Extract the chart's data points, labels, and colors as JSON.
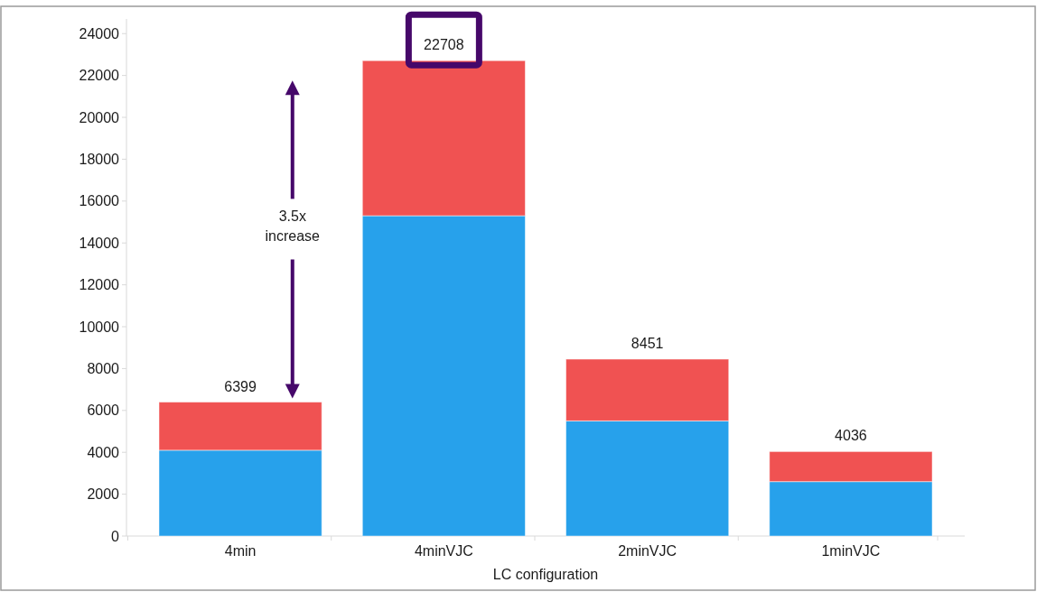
{
  "chart_data": {
    "type": "bar",
    "stacked": true,
    "xlabel": "LC configuration",
    "categories": [
      "4min",
      "4minVJC",
      "2minVJC",
      "1minVJC"
    ],
    "series": [
      {
        "color": "#27a1eb",
        "values": [
          4100,
          15300,
          5500,
          2600
        ]
      },
      {
        "color": "#f05252",
        "values": [
          2299,
          7408,
          2951,
          1436
        ]
      }
    ],
    "totals": [
      "6399",
      "22708",
      "8451",
      "4036"
    ],
    "ylim": [
      0,
      24700
    ],
    "yticks": [
      0,
      2000,
      4000,
      6000,
      8000,
      10000,
      12000,
      14000,
      16000,
      18000,
      20000,
      22000,
      24000
    ],
    "annotations": [
      "3.5x increase"
    ],
    "grid": false
  }
}
